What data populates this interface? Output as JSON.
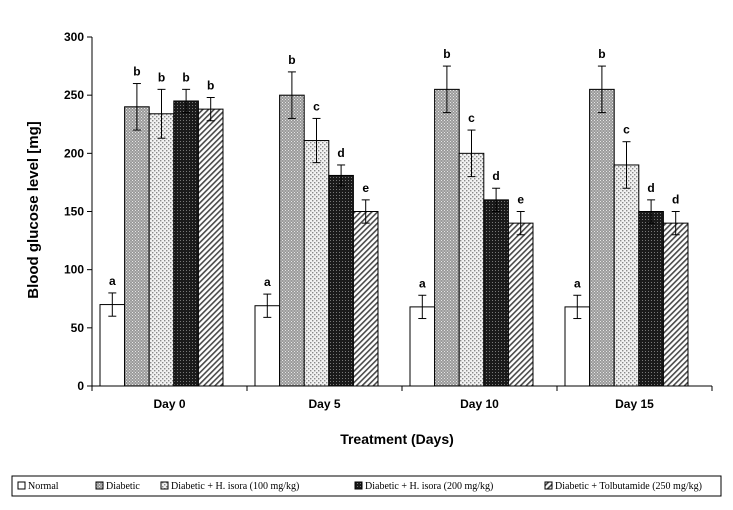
{
  "chart_data": {
    "type": "bar",
    "title": "",
    "xlabel": "Treatment (Days)",
    "ylabel": "Blood glucose level [mg]",
    "ylim": [
      0,
      300
    ],
    "yticks": [
      0,
      50,
      100,
      150,
      200,
      250,
      300
    ],
    "categories": [
      "Day 0",
      "Day 5",
      "Day 10",
      "Day 15"
    ],
    "series": [
      {
        "name": "Normal",
        "values": [
          70,
          69,
          68,
          68
        ],
        "errors": [
          10,
          10,
          10,
          10
        ],
        "letters": [
          "a",
          "a",
          "a",
          "a"
        ],
        "pattern": "white"
      },
      {
        "name": "Diabetic",
        "values": [
          240,
          250,
          255,
          255
        ],
        "errors": [
          20,
          20,
          20,
          20
        ],
        "letters": [
          "b",
          "b",
          "b",
          "b"
        ],
        "pattern": "fine-gray"
      },
      {
        "name": "Diabetic + H. isora (100 mg/kg)",
        "values": [
          234,
          211,
          200,
          190
        ],
        "errors": [
          21,
          19,
          20,
          20
        ],
        "letters": [
          "b",
          "c",
          "c",
          "c"
        ],
        "pattern": "light-dots"
      },
      {
        "name": "Diabetic + H. isora (200 mg/kg)",
        "values": [
          245,
          181,
          160,
          150
        ],
        "errors": [
          10,
          9,
          10,
          10
        ],
        "letters": [
          "b",
          "d",
          "d",
          "d"
        ],
        "pattern": "dark"
      },
      {
        "name": "Diabetic + Tolbutamide (250 mg/kg)",
        "values": [
          238,
          150,
          140,
          140
        ],
        "errors": [
          10,
          10,
          10,
          10
        ],
        "letters": [
          "b",
          "e",
          "e",
          "d"
        ],
        "pattern": "diagonal"
      }
    ],
    "legend_position": "bottom"
  }
}
